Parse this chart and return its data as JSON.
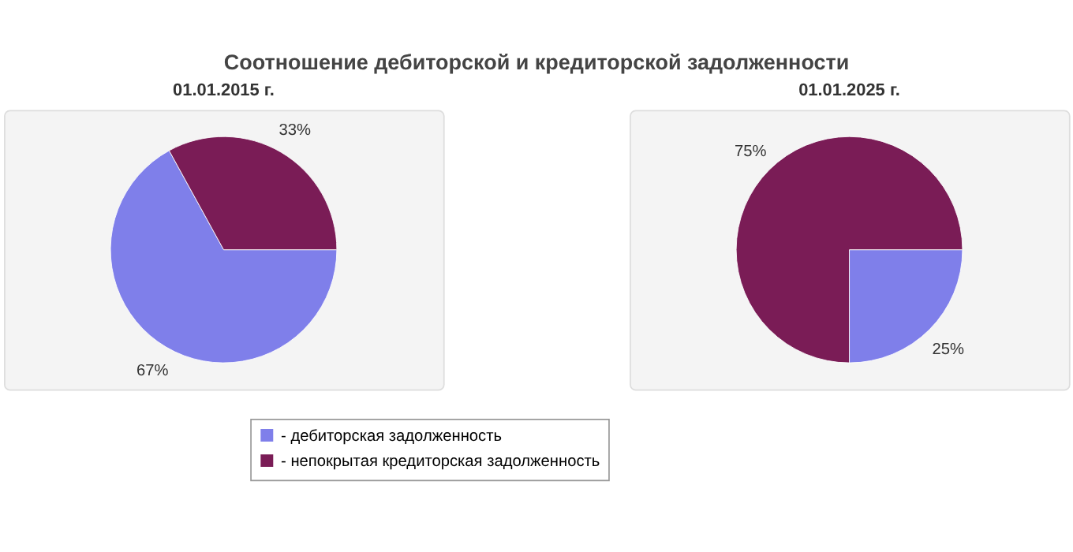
{
  "chart_data": [
    {
      "type": "pie",
      "title": "Соотношение дебиторской и кредиторской задолженности",
      "subtitle": "01.01.2015 г.",
      "categories": [
        "- дебиторская задолженность",
        "- непокрытая кредиторская задолженность"
      ],
      "values": [
        67,
        33
      ],
      "value_labels": [
        "67%",
        "33%"
      ],
      "colors": [
        "#7f7fea",
        "#7a1c56"
      ],
      "legend": "bottom"
    },
    {
      "type": "pie",
      "subtitle": "01.01.2025 г.",
      "categories": [
        null,
        null
      ],
      "values": [
        25,
        75
      ],
      "value_labels": [
        "25%",
        "75%"
      ],
      "colors": [
        "#7f7fea",
        "#7a1c56"
      ]
    }
  ]
}
